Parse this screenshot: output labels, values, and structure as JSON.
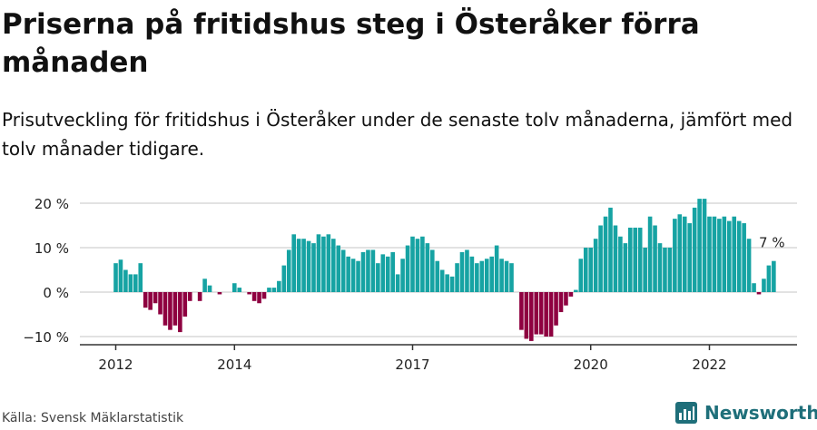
{
  "title": "Priserna på fritidshus steg i Österåker förra månaden",
  "subtitle": "Prisutveckling för fritidshus i Österåker under de senaste tolv månaderna, jämfört med tolv månader tidigare.",
  "source": "Källa: Svensk Mäklarstatistik",
  "brand": "Newsworthy",
  "colors": {
    "positive": "#16a3a3",
    "negative": "#8e0040",
    "brand": "#1f6f7a"
  },
  "chart_data": {
    "type": "bar",
    "ylim": [
      -12,
      22
    ],
    "y_ticks": [
      {
        "v": 20,
        "label": "20 %"
      },
      {
        "v": 10,
        "label": "10 %"
      },
      {
        "v": 0,
        "label": "0 %"
      },
      {
        "v": -10,
        "label": "−10 %"
      }
    ],
    "x_ticks": [
      {
        "v": 2012.0,
        "label": "2012"
      },
      {
        "v": 2014.0,
        "label": "2014"
      },
      {
        "v": 2017.0,
        "label": "2017"
      },
      {
        "v": 2020.0,
        "label": "2020"
      },
      {
        "v": 2022.0,
        "label": "2022"
      }
    ],
    "start": {
      "year": 2012,
      "month": 1
    },
    "values": [
      6.5,
      7.3,
      5.0,
      4.0,
      4.0,
      6.5,
      -3.5,
      -4.0,
      -2.5,
      -5.0,
      -7.5,
      -8.5,
      -7.5,
      -9.0,
      -5.5,
      -2.0,
      0,
      -2.0,
      3.0,
      1.5,
      0,
      -0.5,
      0,
      0,
      2.0,
      1.0,
      0,
      -0.5,
      -2.0,
      -2.5,
      -1.5,
      1.0,
      1.0,
      2.5,
      6.0,
      9.5,
      13.0,
      12.0,
      12.0,
      11.5,
      11.0,
      13.0,
      12.5,
      13.0,
      12.0,
      10.5,
      9.5,
      8.0,
      7.5,
      7.0,
      9.0,
      9.5,
      9.5,
      6.5,
      8.5,
      8.0,
      9.0,
      4.0,
      7.5,
      10.5,
      12.5,
      12.0,
      12.5,
      11.0,
      9.5,
      7.0,
      5.0,
      4.0,
      3.5,
      6.5,
      9.0,
      9.5,
      8.0,
      6.5,
      7.0,
      7.5,
      8.0,
      10.5,
      7.5,
      7.0,
      6.5,
      0,
      -8.5,
      -10.5,
      -11.0,
      -9.5,
      -9.5,
      -10.0,
      -10.0,
      -7.5,
      -4.5,
      -3.0,
      -1.0,
      0.5,
      7.5,
      10.0,
      10.0,
      12.0,
      15.0,
      17.0,
      19.0,
      15.0,
      12.5,
      11.0,
      14.5,
      14.5,
      14.5,
      10.0,
      17.0,
      15.0,
      11.0,
      10.0,
      10.0,
      16.5,
      17.5,
      17.0,
      15.5,
      19.0,
      21.0,
      21.0,
      17.0,
      17.0,
      16.5,
      17.0,
      16.0,
      17.0,
      16.0,
      15.5,
      12.0,
      2.0,
      -0.5,
      3.0,
      6.0,
      7.0
    ],
    "annotation": "7 %"
  }
}
